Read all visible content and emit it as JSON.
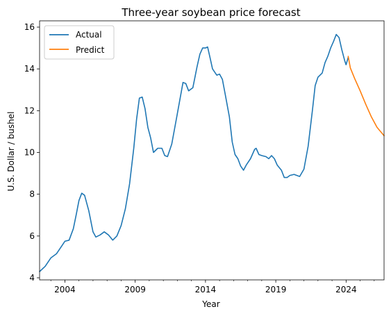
{
  "chart_data": {
    "type": "line",
    "title": "Three-year soybean price forecast",
    "xlabel": "Year",
    "ylabel": "U.S. Dollar / bushel",
    "xlim": [
      2002.2,
      2026.7
    ],
    "ylim": [
      3.9,
      16.3
    ],
    "xticks": [
      2004,
      2009,
      2014,
      2019,
      2024
    ],
    "yticks": [
      4,
      6,
      8,
      10,
      12,
      14,
      16
    ],
    "x_minor_ticks": true,
    "grid": false,
    "legend": "upper left",
    "series": [
      {
        "name": "Actual",
        "color": "#1f77b4",
        "points": [
          [
            2002.2,
            4.3
          ],
          [
            2002.6,
            4.55
          ],
          [
            2003.0,
            4.95
          ],
          [
            2003.4,
            5.15
          ],
          [
            2003.8,
            5.55
          ],
          [
            2004.0,
            5.75
          ],
          [
            2004.3,
            5.8
          ],
          [
            2004.6,
            6.35
          ],
          [
            2004.8,
            7.0
          ],
          [
            2005.0,
            7.7
          ],
          [
            2005.2,
            8.05
          ],
          [
            2005.4,
            7.95
          ],
          [
            2005.7,
            7.2
          ],
          [
            2006.0,
            6.2
          ],
          [
            2006.2,
            5.95
          ],
          [
            2006.5,
            6.05
          ],
          [
            2006.8,
            6.2
          ],
          [
            2007.1,
            6.05
          ],
          [
            2007.4,
            5.8
          ],
          [
            2007.7,
            6.0
          ],
          [
            2008.0,
            6.5
          ],
          [
            2008.3,
            7.3
          ],
          [
            2008.6,
            8.5
          ],
          [
            2008.9,
            10.2
          ],
          [
            2009.1,
            11.6
          ],
          [
            2009.3,
            12.6
          ],
          [
            2009.5,
            12.65
          ],
          [
            2009.7,
            12.1
          ],
          [
            2009.9,
            11.2
          ],
          [
            2010.1,
            10.7
          ],
          [
            2010.3,
            10.0
          ],
          [
            2010.6,
            10.2
          ],
          [
            2010.9,
            10.2
          ],
          [
            2011.1,
            9.85
          ],
          [
            2011.3,
            9.8
          ],
          [
            2011.6,
            10.4
          ],
          [
            2011.9,
            11.5
          ],
          [
            2012.2,
            12.6
          ],
          [
            2012.4,
            13.35
          ],
          [
            2012.6,
            13.3
          ],
          [
            2012.8,
            12.95
          ],
          [
            2013.1,
            13.1
          ],
          [
            2013.4,
            14.1
          ],
          [
            2013.6,
            14.7
          ],
          [
            2013.8,
            15.0
          ],
          [
            2014.0,
            15.0
          ],
          [
            2014.15,
            15.05
          ],
          [
            2014.3,
            14.6
          ],
          [
            2014.5,
            14.0
          ],
          [
            2014.8,
            13.7
          ],
          [
            2015.0,
            13.75
          ],
          [
            2015.2,
            13.5
          ],
          [
            2015.4,
            12.8
          ],
          [
            2015.7,
            11.7
          ],
          [
            2015.9,
            10.5
          ],
          [
            2016.1,
            9.9
          ],
          [
            2016.3,
            9.7
          ],
          [
            2016.5,
            9.35
          ],
          [
            2016.7,
            9.15
          ],
          [
            2016.9,
            9.4
          ],
          [
            2017.2,
            9.7
          ],
          [
            2017.5,
            10.15
          ],
          [
            2017.6,
            10.2
          ],
          [
            2017.8,
            9.9
          ],
          [
            2018.0,
            9.85
          ],
          [
            2018.3,
            9.8
          ],
          [
            2018.5,
            9.7
          ],
          [
            2018.7,
            9.85
          ],
          [
            2018.9,
            9.7
          ],
          [
            2019.1,
            9.4
          ],
          [
            2019.4,
            9.15
          ],
          [
            2019.6,
            8.8
          ],
          [
            2019.8,
            8.8
          ],
          [
            2020.0,
            8.9
          ],
          [
            2020.3,
            8.95
          ],
          [
            2020.7,
            8.85
          ],
          [
            2021.0,
            9.2
          ],
          [
            2021.3,
            10.3
          ],
          [
            2021.6,
            12.0
          ],
          [
            2021.8,
            13.2
          ],
          [
            2022.0,
            13.6
          ],
          [
            2022.3,
            13.8
          ],
          [
            2022.5,
            14.3
          ],
          [
            2022.7,
            14.6
          ],
          [
            2022.9,
            15.0
          ],
          [
            2023.1,
            15.3
          ],
          [
            2023.3,
            15.65
          ],
          [
            2023.5,
            15.5
          ],
          [
            2023.7,
            14.9
          ],
          [
            2023.9,
            14.4
          ],
          [
            2024.0,
            14.2
          ],
          [
            2024.15,
            14.55
          ]
        ]
      },
      {
        "name": "Predict",
        "color": "#ff7f0e",
        "points": [
          [
            2024.15,
            14.6
          ],
          [
            2024.3,
            14.05
          ],
          [
            2024.6,
            13.55
          ],
          [
            2025.0,
            12.95
          ],
          [
            2025.4,
            12.3
          ],
          [
            2025.8,
            11.7
          ],
          [
            2026.2,
            11.2
          ],
          [
            2026.7,
            10.8
          ]
        ]
      }
    ]
  }
}
